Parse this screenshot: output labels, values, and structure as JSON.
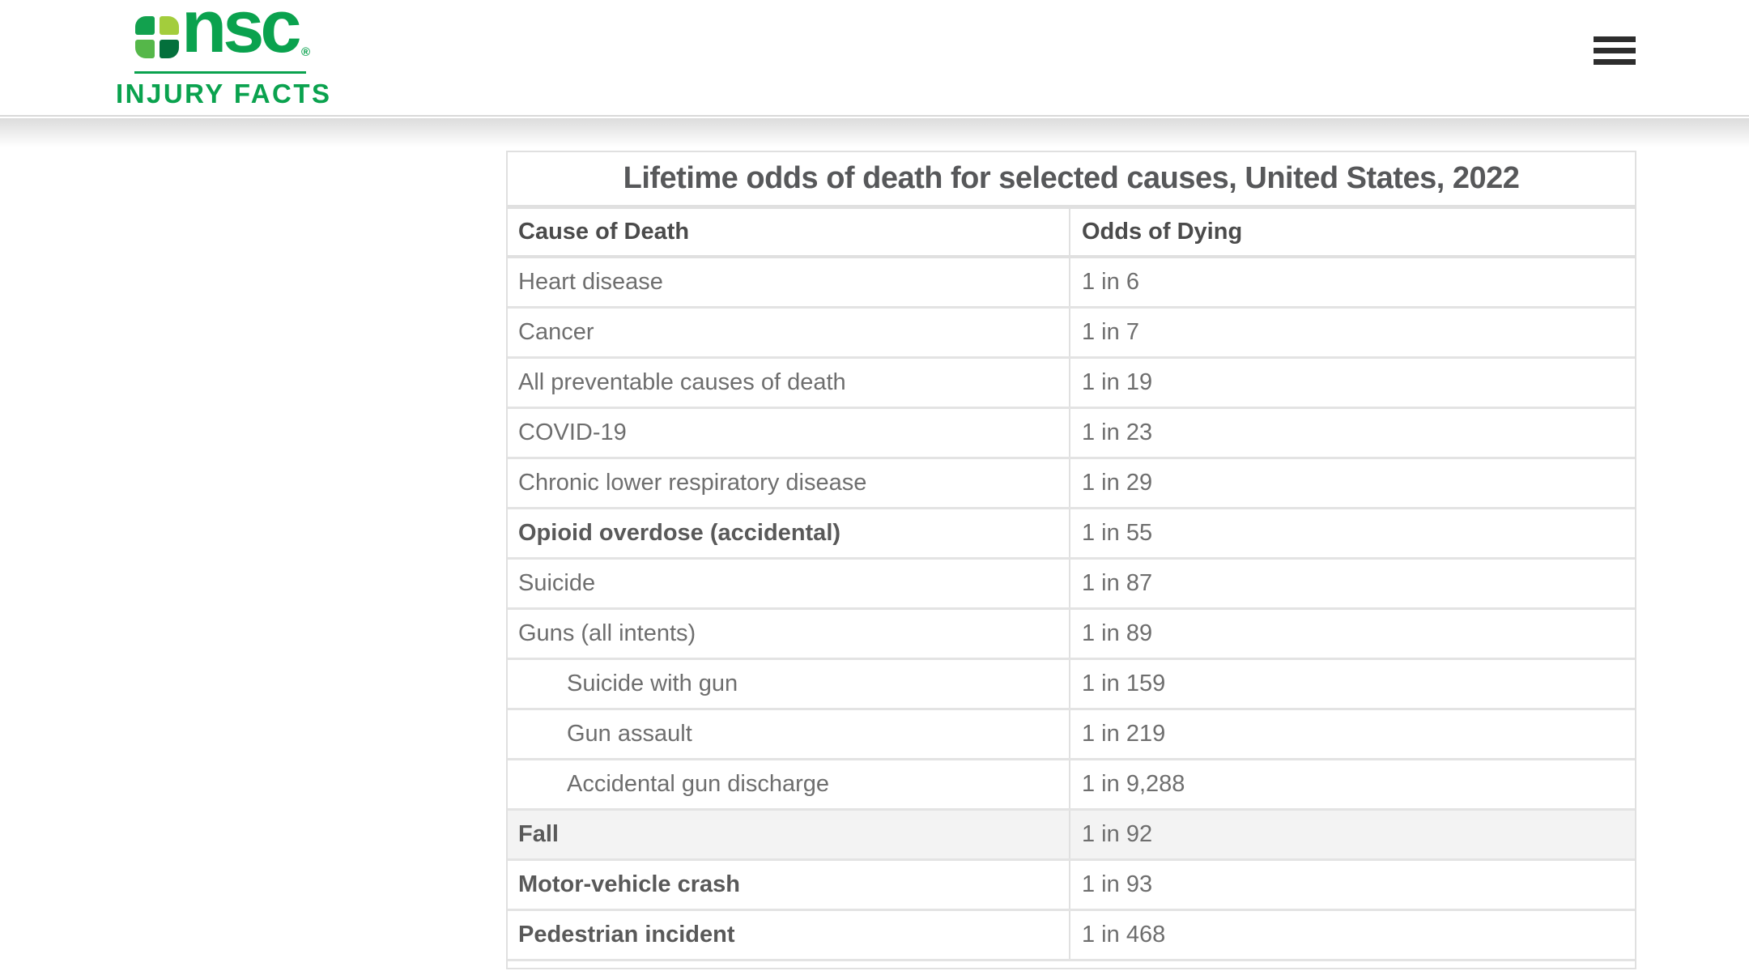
{
  "brand": {
    "logo_text": "nsc",
    "registered_mark": "®",
    "logo_subtext": "INJURY FACTS",
    "colors": {
      "brand_green": "#0aa24e",
      "cross_top_left": "#12a14e",
      "cross_top_right": "#a3cd3c",
      "cross_bottom_left": "#55b749",
      "cross_bottom_right": "#04703c",
      "menu_bar": "#2d2d2d",
      "row_highlight": "#f3f3f3"
    }
  },
  "header": {
    "menu_icon": "hamburger-icon"
  },
  "table": {
    "title": "Lifetime odds of death for selected causes, United States, 2022",
    "columns": [
      "Cause of Death",
      "Odds of Dying"
    ],
    "rows": [
      {
        "cause": "Heart disease",
        "odds": "1 in 6",
        "bold": false,
        "indent": false,
        "shaded": false
      },
      {
        "cause": "Cancer",
        "odds": "1 in 7",
        "bold": false,
        "indent": false,
        "shaded": false
      },
      {
        "cause": "All preventable causes of death",
        "odds": "1 in 19",
        "bold": false,
        "indent": false,
        "shaded": false
      },
      {
        "cause": "COVID-19",
        "odds": "1 in 23",
        "bold": false,
        "indent": false,
        "shaded": false
      },
      {
        "cause": "Chronic lower respiratory disease",
        "odds": "1 in 29",
        "bold": false,
        "indent": false,
        "shaded": false
      },
      {
        "cause": "Opioid overdose (accidental)",
        "odds": "1 in 55",
        "bold": true,
        "indent": false,
        "shaded": false
      },
      {
        "cause": "Suicide",
        "odds": "1 in 87",
        "bold": false,
        "indent": false,
        "shaded": false
      },
      {
        "cause": "Guns (all intents)",
        "odds": "1 in 89",
        "bold": false,
        "indent": false,
        "shaded": false
      },
      {
        "cause": "Suicide with gun",
        "odds": "1 in 159",
        "bold": false,
        "indent": true,
        "shaded": false
      },
      {
        "cause": "Gun assault",
        "odds": "1 in 219",
        "bold": false,
        "indent": true,
        "shaded": false
      },
      {
        "cause": "Accidental gun discharge",
        "odds": "1 in 9,288",
        "bold": false,
        "indent": true,
        "shaded": false
      },
      {
        "cause": "Fall",
        "odds": "1 in 92",
        "bold": true,
        "indent": false,
        "shaded": true
      },
      {
        "cause": "Motor-vehicle crash",
        "odds": "1 in 93",
        "bold": true,
        "indent": false,
        "shaded": false
      },
      {
        "cause": "Pedestrian incident",
        "odds": "1 in 468",
        "bold": true,
        "indent": false,
        "shaded": false
      }
    ]
  }
}
